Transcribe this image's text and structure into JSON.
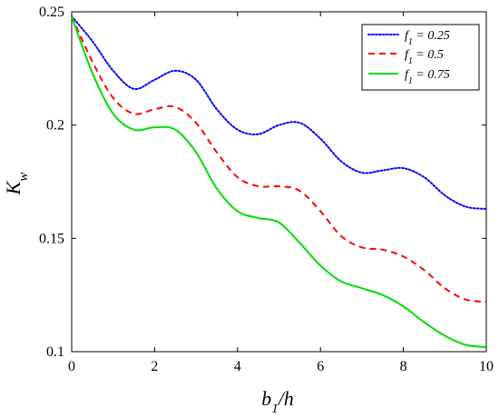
{
  "chart_data": {
    "type": "line",
    "xlabel": "b1/h",
    "ylabel": "Kw",
    "xlim": [
      0,
      10
    ],
    "ylim": [
      0.1,
      0.25
    ],
    "x_ticks": [
      0,
      2,
      4,
      6,
      8,
      10
    ],
    "y_ticks": [
      0.1,
      0.15,
      0.2,
      0.25
    ],
    "grid": false,
    "legend_position": "top-right",
    "series": [
      {
        "name": "f1 = 0.25",
        "color": "#0000ff",
        "style": "dotted",
        "x": [
          0,
          0.5,
          1.0,
          1.5,
          2.0,
          2.5,
          3.0,
          3.5,
          4.0,
          4.5,
          5.0,
          5.5,
          6.0,
          6.5,
          7.0,
          7.5,
          8.0,
          8.5,
          9.0,
          9.5,
          10.0
        ],
        "y": [
          0.248,
          0.237,
          0.224,
          0.216,
          0.22,
          0.224,
          0.22,
          0.207,
          0.198,
          0.196,
          0.2,
          0.201,
          0.194,
          0.184,
          0.179,
          0.18,
          0.181,
          0.177,
          0.169,
          0.164,
          0.163
        ]
      },
      {
        "name": "f1 = 0.5",
        "color": "#ff0000",
        "style": "dashed",
        "x": [
          0,
          0.5,
          1.0,
          1.5,
          2.0,
          2.5,
          3.0,
          3.5,
          4.0,
          4.5,
          5.0,
          5.5,
          6.0,
          6.5,
          7.0,
          7.5,
          8.0,
          8.5,
          9.0,
          9.5,
          10.0
        ],
        "y": [
          0.248,
          0.228,
          0.212,
          0.205,
          0.207,
          0.208,
          0.201,
          0.188,
          0.177,
          0.173,
          0.173,
          0.171,
          0.162,
          0.151,
          0.146,
          0.145,
          0.142,
          0.136,
          0.128,
          0.123,
          0.122
        ]
      },
      {
        "name": "f1 = 0.75",
        "color": "#00dd00",
        "style": "solid",
        "x": [
          0,
          0.5,
          1.0,
          1.5,
          2.0,
          2.5,
          3.0,
          3.5,
          4.0,
          4.5,
          5.0,
          5.5,
          6.0,
          6.5,
          7.0,
          7.5,
          8.0,
          8.5,
          9.0,
          9.5,
          10.0
        ],
        "y": [
          0.248,
          0.223,
          0.205,
          0.198,
          0.199,
          0.198,
          0.188,
          0.172,
          0.162,
          0.159,
          0.157,
          0.148,
          0.138,
          0.131,
          0.128,
          0.125,
          0.12,
          0.113,
          0.107,
          0.103,
          0.102
        ]
      }
    ]
  },
  "labels": {
    "xlabel_base": "b",
    "xlabel_sub": "1",
    "xlabel_rest": "/h",
    "ylabel_base": "K",
    "ylabel_sub": "w",
    "legend": [
      {
        "base": "f",
        "sub": "1",
        "rest": " = 0.25"
      },
      {
        "base": "f",
        "sub": "1",
        "rest": " = 0.5"
      },
      {
        "base": "f",
        "sub": "1",
        "rest": " = 0.75"
      }
    ]
  }
}
